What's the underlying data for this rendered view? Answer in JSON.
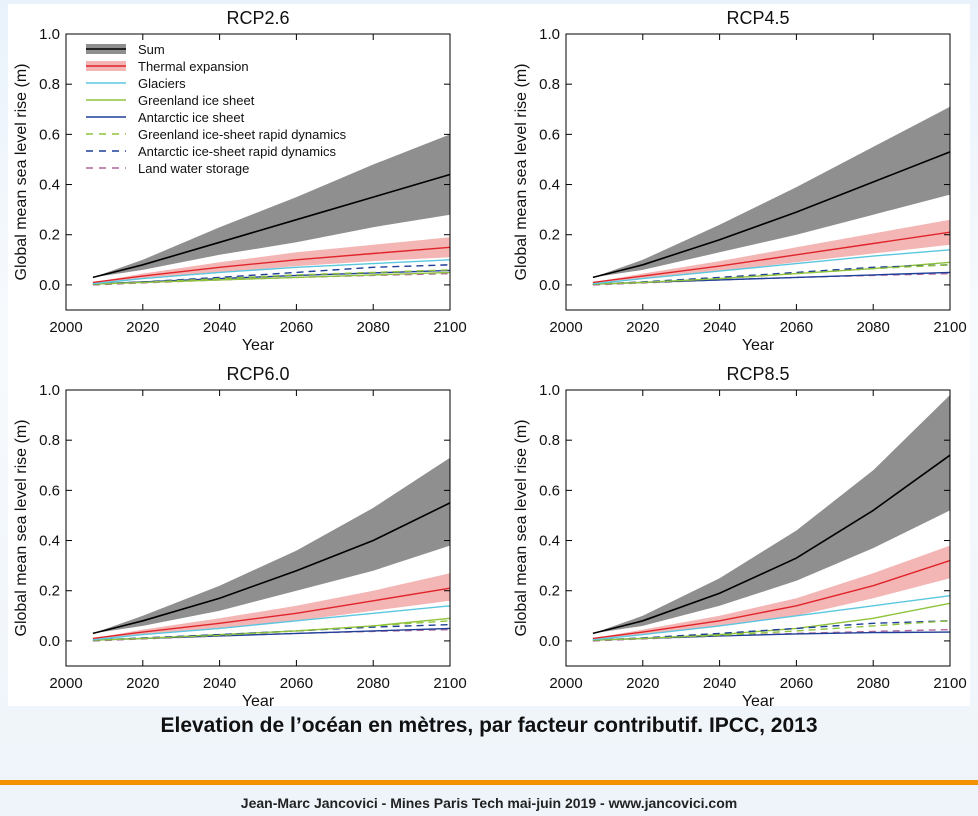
{
  "caption": "Elevation de l’océan en mètres, par facteur contributif. IPCC, 2013",
  "footer": "Jean-Marc Jancovici - Mines Paris Tech mai-juin 2019 - www.jancovici.com",
  "colors": {
    "sum": "#000000",
    "sum_band": "#8f8f8f",
    "thermal": "#e0252a",
    "thermal_band": "#f4b5b5",
    "glaciers": "#5bc7df",
    "greenland": "#8fc33a",
    "antarctic": "#1f3f98",
    "greenland_rapid": "#8fc33a",
    "antarctic_rapid": "#1f3f98",
    "land_water": "#b0679b",
    "accent_rule": "#f39200"
  },
  "legend": [
    {
      "key": "sum",
      "label": "Sum",
      "style": "band-line"
    },
    {
      "key": "thermal",
      "label": "Thermal expansion",
      "style": "band-line"
    },
    {
      "key": "glaciers",
      "label": "Glaciers",
      "style": "solid"
    },
    {
      "key": "greenland",
      "label": "Greenland ice sheet",
      "style": "solid"
    },
    {
      "key": "antarctic",
      "label": "Antarctic ice sheet",
      "style": "solid"
    },
    {
      "key": "greenland_rapid",
      "label": "Greenland ice-sheet rapid dynamics",
      "style": "dashed"
    },
    {
      "key": "antarctic_rapid",
      "label": "Antarctic ice-sheet rapid dynamics",
      "style": "dashed"
    },
    {
      "key": "land_water",
      "label": "Land water storage",
      "style": "dashed"
    }
  ],
  "chart_data": [
    {
      "type": "line",
      "title": "RCP2.6",
      "xlabel": "Year",
      "ylabel": "Global mean sea level rise (m)",
      "xlim": [
        2000,
        2100
      ],
      "ylim": [
        -0.1,
        1.0
      ],
      "x_ticks": [
        2000,
        2020,
        2040,
        2060,
        2080,
        2100
      ],
      "y_ticks": [
        0.0,
        0.2,
        0.4,
        0.6,
        0.8,
        1.0
      ],
      "y_tick_labels": [
        "0.0",
        "0.2",
        "0.4",
        "0.6",
        "0.8",
        "1.0"
      ],
      "legend_position": "top-left",
      "x": [
        2007,
        2020,
        2040,
        2060,
        2080,
        2100
      ],
      "series": [
        {
          "key": "sum",
          "name": "Sum",
          "values": [
            0.03,
            0.08,
            0.17,
            0.26,
            0.35,
            0.44
          ],
          "lower": [
            0.03,
            0.06,
            0.12,
            0.17,
            0.23,
            0.28
          ],
          "upper": [
            0.03,
            0.1,
            0.23,
            0.35,
            0.48,
            0.6
          ]
        },
        {
          "key": "thermal",
          "name": "Thermal expansion",
          "values": [
            0.01,
            0.035,
            0.07,
            0.1,
            0.125,
            0.15
          ],
          "lower": [
            0.01,
            0.025,
            0.05,
            0.075,
            0.095,
            0.11
          ],
          "upper": [
            0.01,
            0.045,
            0.09,
            0.13,
            0.16,
            0.19
          ]
        },
        {
          "key": "glaciers",
          "name": "Glaciers",
          "values": [
            0.005,
            0.025,
            0.05,
            0.07,
            0.085,
            0.1
          ]
        },
        {
          "key": "greenland",
          "name": "Greenland ice sheet",
          "values": [
            0.003,
            0.01,
            0.02,
            0.03,
            0.04,
            0.05
          ]
        },
        {
          "key": "antarctic",
          "name": "Antarctic ice sheet",
          "values": [
            0.003,
            0.012,
            0.025,
            0.038,
            0.048,
            0.058
          ]
        },
        {
          "key": "greenland_rapid",
          "name": "Greenland ice-sheet rapid dynamics",
          "values": [
            0.003,
            0.01,
            0.025,
            0.04,
            0.05,
            0.06
          ]
        },
        {
          "key": "antarctic_rapid",
          "name": "Antarctic ice-sheet rapid dynamics",
          "values": [
            0.003,
            0.012,
            0.03,
            0.05,
            0.07,
            0.08
          ]
        },
        {
          "key": "land_water",
          "name": "Land water storage",
          "values": [
            0.0,
            0.008,
            0.02,
            0.03,
            0.038,
            0.045
          ]
        }
      ]
    },
    {
      "type": "line",
      "title": "RCP4.5",
      "xlabel": "Year",
      "ylabel": "Global mean sea level rise (m)",
      "xlim": [
        2000,
        2100
      ],
      "ylim": [
        -0.1,
        1.0
      ],
      "x_ticks": [
        2000,
        2020,
        2040,
        2060,
        2080,
        2100
      ],
      "y_ticks": [
        0.0,
        0.2,
        0.4,
        0.6,
        0.8,
        1.0
      ],
      "y_tick_labels": [
        "0.0",
        "0.2",
        "0.4",
        "0.6",
        "0.8",
        "1.0"
      ],
      "x": [
        2007,
        2020,
        2040,
        2060,
        2080,
        2100
      ],
      "series": [
        {
          "key": "sum",
          "name": "Sum",
          "values": [
            0.03,
            0.08,
            0.18,
            0.29,
            0.41,
            0.53
          ],
          "lower": [
            0.03,
            0.06,
            0.13,
            0.2,
            0.28,
            0.36
          ],
          "upper": [
            0.03,
            0.1,
            0.24,
            0.39,
            0.55,
            0.71
          ]
        },
        {
          "key": "thermal",
          "name": "Thermal expansion",
          "values": [
            0.01,
            0.035,
            0.075,
            0.12,
            0.165,
            0.21
          ],
          "lower": [
            0.01,
            0.025,
            0.055,
            0.09,
            0.125,
            0.16
          ],
          "upper": [
            0.01,
            0.045,
            0.095,
            0.15,
            0.205,
            0.26
          ]
        },
        {
          "key": "glaciers",
          "name": "Glaciers",
          "values": [
            0.005,
            0.025,
            0.055,
            0.085,
            0.115,
            0.14
          ]
        },
        {
          "key": "greenland",
          "name": "Greenland ice sheet",
          "values": [
            0.003,
            0.01,
            0.025,
            0.045,
            0.065,
            0.09
          ]
        },
        {
          "key": "antarctic",
          "name": "Antarctic ice sheet",
          "values": [
            0.003,
            0.01,
            0.02,
            0.03,
            0.04,
            0.05
          ]
        },
        {
          "key": "greenland_rapid",
          "name": "Greenland ice-sheet rapid dynamics",
          "values": [
            0.003,
            0.01,
            0.025,
            0.045,
            0.065,
            0.08
          ]
        },
        {
          "key": "antarctic_rapid",
          "name": "Antarctic ice-sheet rapid dynamics",
          "values": [
            0.003,
            0.012,
            0.03,
            0.05,
            0.07,
            0.08
          ]
        },
        {
          "key": "land_water",
          "name": "Land water storage",
          "values": [
            0.0,
            0.008,
            0.02,
            0.03,
            0.038,
            0.045
          ]
        }
      ]
    },
    {
      "type": "line",
      "title": "RCP6.0",
      "xlabel": "Year",
      "ylabel": "Global mean sea level rise (m)",
      "xlim": [
        2000,
        2100
      ],
      "ylim": [
        -0.1,
        1.0
      ],
      "x_ticks": [
        2000,
        2020,
        2040,
        2060,
        2080,
        2100
      ],
      "y_ticks": [
        0.0,
        0.2,
        0.4,
        0.6,
        0.8,
        1.0
      ],
      "y_tick_labels": [
        "0.0",
        "0.2",
        "0.4",
        "0.6",
        "0.8",
        "1.0"
      ],
      "x": [
        2007,
        2020,
        2040,
        2060,
        2080,
        2100
      ],
      "series": [
        {
          "key": "sum",
          "name": "Sum",
          "values": [
            0.03,
            0.08,
            0.17,
            0.28,
            0.4,
            0.55
          ],
          "lower": [
            0.03,
            0.06,
            0.12,
            0.2,
            0.28,
            0.38
          ],
          "upper": [
            0.03,
            0.1,
            0.22,
            0.36,
            0.53,
            0.73
          ]
        },
        {
          "key": "thermal",
          "name": "Thermal expansion",
          "values": [
            0.01,
            0.035,
            0.07,
            0.11,
            0.16,
            0.21
          ],
          "lower": [
            0.01,
            0.025,
            0.05,
            0.08,
            0.12,
            0.16
          ],
          "upper": [
            0.01,
            0.045,
            0.09,
            0.14,
            0.2,
            0.27
          ]
        },
        {
          "key": "glaciers",
          "name": "Glaciers",
          "values": [
            0.005,
            0.025,
            0.05,
            0.08,
            0.11,
            0.14
          ]
        },
        {
          "key": "greenland",
          "name": "Greenland ice sheet",
          "values": [
            0.003,
            0.01,
            0.025,
            0.04,
            0.06,
            0.09
          ]
        },
        {
          "key": "antarctic",
          "name": "Antarctic ice sheet",
          "values": [
            0.003,
            0.01,
            0.02,
            0.03,
            0.04,
            0.05
          ]
        },
        {
          "key": "greenland_rapid",
          "name": "Greenland ice-sheet rapid dynamics",
          "values": [
            0.003,
            0.01,
            0.022,
            0.04,
            0.06,
            0.08
          ]
        },
        {
          "key": "antarctic_rapid",
          "name": "Antarctic ice-sheet rapid dynamics",
          "values": [
            0.003,
            0.012,
            0.025,
            0.04,
            0.055,
            0.065
          ]
        },
        {
          "key": "land_water",
          "name": "Land water storage",
          "values": [
            0.0,
            0.008,
            0.02,
            0.03,
            0.038,
            0.045
          ]
        }
      ]
    },
    {
      "type": "line",
      "title": "RCP8.5",
      "xlabel": "Year",
      "ylabel": "Global mean sea level rise (m)",
      "xlim": [
        2000,
        2100
      ],
      "ylim": [
        -0.1,
        1.0
      ],
      "x_ticks": [
        2000,
        2020,
        2040,
        2060,
        2080,
        2100
      ],
      "y_ticks": [
        0.0,
        0.2,
        0.4,
        0.6,
        0.8,
        1.0
      ],
      "y_tick_labels": [
        "0.0",
        "0.2",
        "0.4",
        "0.6",
        "0.8",
        "1.0"
      ],
      "x": [
        2007,
        2020,
        2040,
        2060,
        2080,
        2100
      ],
      "series": [
        {
          "key": "sum",
          "name": "Sum",
          "values": [
            0.03,
            0.08,
            0.19,
            0.33,
            0.52,
            0.74
          ],
          "lower": [
            0.03,
            0.06,
            0.14,
            0.24,
            0.37,
            0.52
          ],
          "upper": [
            0.03,
            0.1,
            0.25,
            0.44,
            0.68,
            0.98
          ]
        },
        {
          "key": "thermal",
          "name": "Thermal expansion",
          "values": [
            0.01,
            0.035,
            0.08,
            0.14,
            0.22,
            0.32
          ],
          "lower": [
            0.01,
            0.025,
            0.06,
            0.1,
            0.17,
            0.25
          ],
          "upper": [
            0.01,
            0.045,
            0.1,
            0.17,
            0.27,
            0.38
          ]
        },
        {
          "key": "glaciers",
          "name": "Glaciers",
          "values": [
            0.005,
            0.025,
            0.06,
            0.1,
            0.14,
            0.18
          ]
        },
        {
          "key": "greenland",
          "name": "Greenland ice sheet",
          "values": [
            0.003,
            0.01,
            0.025,
            0.05,
            0.09,
            0.15
          ]
        },
        {
          "key": "antarctic",
          "name": "Antarctic ice sheet",
          "values": [
            0.003,
            0.01,
            0.02,
            0.028,
            0.033,
            0.035
          ]
        },
        {
          "key": "greenland_rapid",
          "name": "Greenland ice-sheet rapid dynamics",
          "values": [
            0.003,
            0.01,
            0.022,
            0.04,
            0.06,
            0.08
          ]
        },
        {
          "key": "antarctic_rapid",
          "name": "Antarctic ice-sheet rapid dynamics",
          "values": [
            0.003,
            0.012,
            0.03,
            0.05,
            0.07,
            0.08
          ]
        },
        {
          "key": "land_water",
          "name": "Land water storage",
          "values": [
            0.0,
            0.008,
            0.02,
            0.03,
            0.038,
            0.045
          ]
        }
      ]
    }
  ]
}
